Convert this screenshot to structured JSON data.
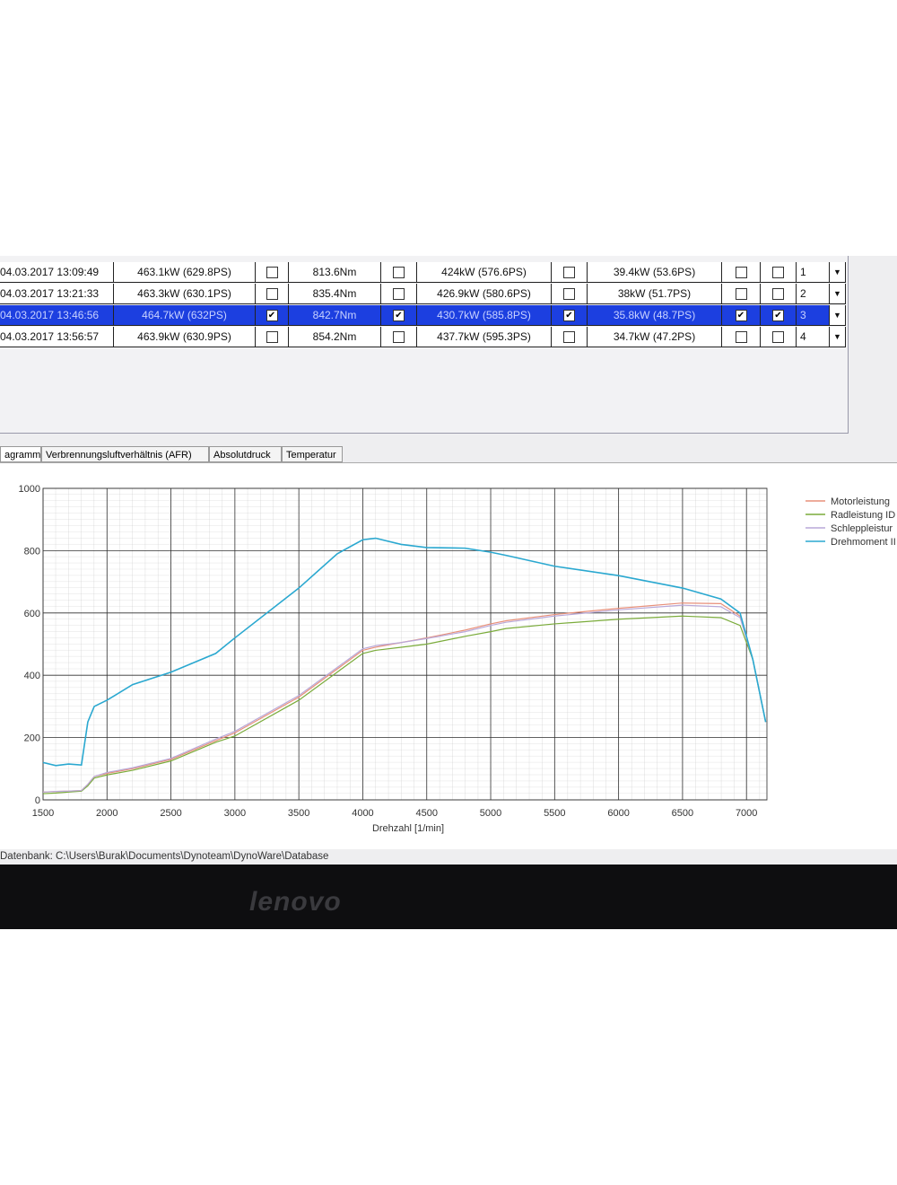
{
  "table": {
    "selected": 2,
    "rows": [
      [
        "04.03.2017 13:09:49",
        "463.1kW (629.8PS)",
        false,
        "813.6Nm",
        false,
        "424kW (576.6PS)",
        false,
        "39.4kW (53.6PS)",
        false,
        false,
        "1"
      ],
      [
        "04.03.2017 13:21:33",
        "463.3kW (630.1PS)",
        false,
        "835.4Nm",
        false,
        "426.9kW (580.6PS)",
        false,
        "38kW (51.7PS)",
        false,
        false,
        "2"
      ],
      [
        "04.03.2017 13:46:56",
        "464.7kW (632PS)",
        true,
        "842.7Nm",
        true,
        "430.7kW (585.8PS)",
        true,
        "35.8kW (48.7PS)",
        true,
        true,
        "3"
      ],
      [
        "04.03.2017 13:56:57",
        "463.9kW (630.9PS)",
        false,
        "854.2Nm",
        false,
        "437.7kW (595.3PS)",
        false,
        "34.7kW (47.2PS)",
        false,
        false,
        "4"
      ]
    ]
  },
  "tabs": [
    "agramm",
    "Verbrennungsluftverhältnis (AFR)",
    "Absolutdruck",
    "Temperatur"
  ],
  "chart_data": {
    "type": "line",
    "x_label": "Drehzahl [1/min]",
    "x": [
      1500,
      1600,
      1700,
      1800,
      1850,
      1900,
      2000,
      2200,
      2500,
      2850,
      3000,
      3500,
      3800,
      4000,
      4100,
      4300,
      4500,
      4800,
      5000,
      5120,
      5500,
      6000,
      6500,
      6800,
      6950,
      7050,
      7150
    ],
    "xlim": [
      1500,
      7160
    ],
    "ylim": [
      0,
      1000
    ],
    "xticks": [
      1500,
      2000,
      2500,
      3000,
      3500,
      4000,
      4500,
      5000,
      5500,
      6000,
      6500,
      7000
    ],
    "yticks": [
      0,
      200,
      400,
      600,
      800,
      1000
    ],
    "grid": true,
    "series": [
      {
        "name": "Motorleistung",
        "color": "#e8907a",
        "values": [
          25,
          27,
          28,
          30,
          50,
          75,
          85,
          100,
          130,
          190,
          215,
          330,
          420,
          480,
          490,
          505,
          520,
          545,
          565,
          575,
          595,
          615,
          632,
          630,
          590,
          450,
          250
        ]
      },
      {
        "name": "Radleistung ID",
        "color": "#7aab3a",
        "values": [
          20,
          22,
          25,
          28,
          45,
          70,
          80,
          95,
          125,
          185,
          205,
          320,
          410,
          470,
          480,
          490,
          500,
          525,
          540,
          550,
          565,
          580,
          590,
          585,
          560,
          450,
          250
        ]
      },
      {
        "name": "Schleppleistur",
        "color": "#b9a8d8",
        "values": [
          25,
          27,
          28,
          30,
          50,
          75,
          88,
          103,
          133,
          195,
          220,
          335,
          425,
          485,
          495,
          505,
          518,
          540,
          560,
          570,
          590,
          610,
          625,
          620,
          585,
          450,
          250
        ]
      },
      {
        "name": "Drehmoment II",
        "color": "#2aa8d0",
        "values": [
          120,
          110,
          115,
          112,
          250,
          300,
          320,
          370,
          410,
          470,
          520,
          680,
          790,
          835,
          840,
          820,
          810,
          808,
          795,
          785,
          750,
          720,
          680,
          645,
          600,
          450,
          250
        ]
      }
    ]
  },
  "status": "Datenbank: C:\\Users\\Burak\\Documents\\Dynoteam\\DynoWare\\Database",
  "brand": "lenovo"
}
